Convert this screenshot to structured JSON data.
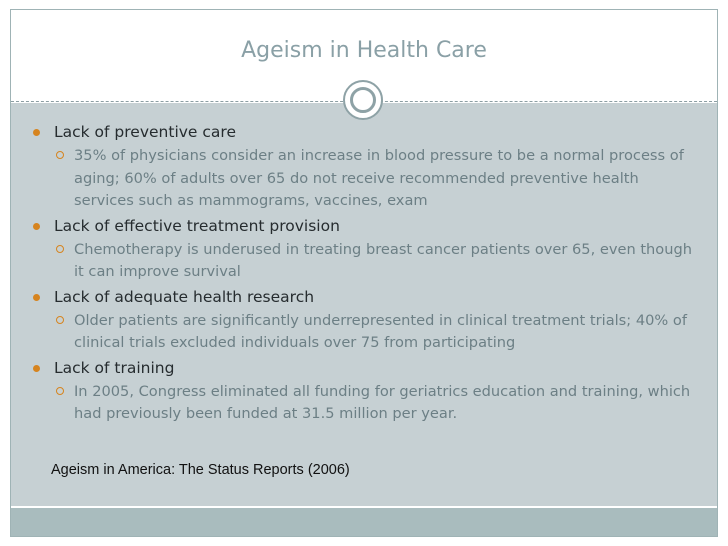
{
  "slide": {
    "title": "Ageism in Health Care",
    "points": [
      {
        "heading": "Lack of preventive care",
        "detail": "35% of physicians consider an increase in blood pressure to be a normal process of aging; 60% of adults over 65 do not receive recommended preventive health services such as mammograms, vaccines, exam"
      },
      {
        "heading": "Lack of effective treatment provision",
        "detail": "Chemotherapy is underused in treating breast cancer patients over 65, even though it can improve survival"
      },
      {
        "heading": "Lack of adequate health research",
        "detail": "Older patients are significantly underrepresented in clinical treatment trials; 40% of clinical trials excluded individuals over 75 from participating"
      },
      {
        "heading": "Lack of training",
        "detail": "In 2005, Congress eliminated all funding for geriatrics education and training, which had previously been funded at 31.5 million per year."
      }
    ],
    "citation": "Ageism in America: The Status Reports (2006)",
    "colors": {
      "title": "#8aa0a6",
      "content_bg": "#c6d0d3",
      "bullet_accent": "#d6841f",
      "footer_band": "#a9bcbe"
    },
    "icons": {
      "bullet_level1": "filled-circle-icon",
      "bullet_level2": "hollow-circle-icon",
      "divider_ornament": "double-ring-icon"
    }
  }
}
